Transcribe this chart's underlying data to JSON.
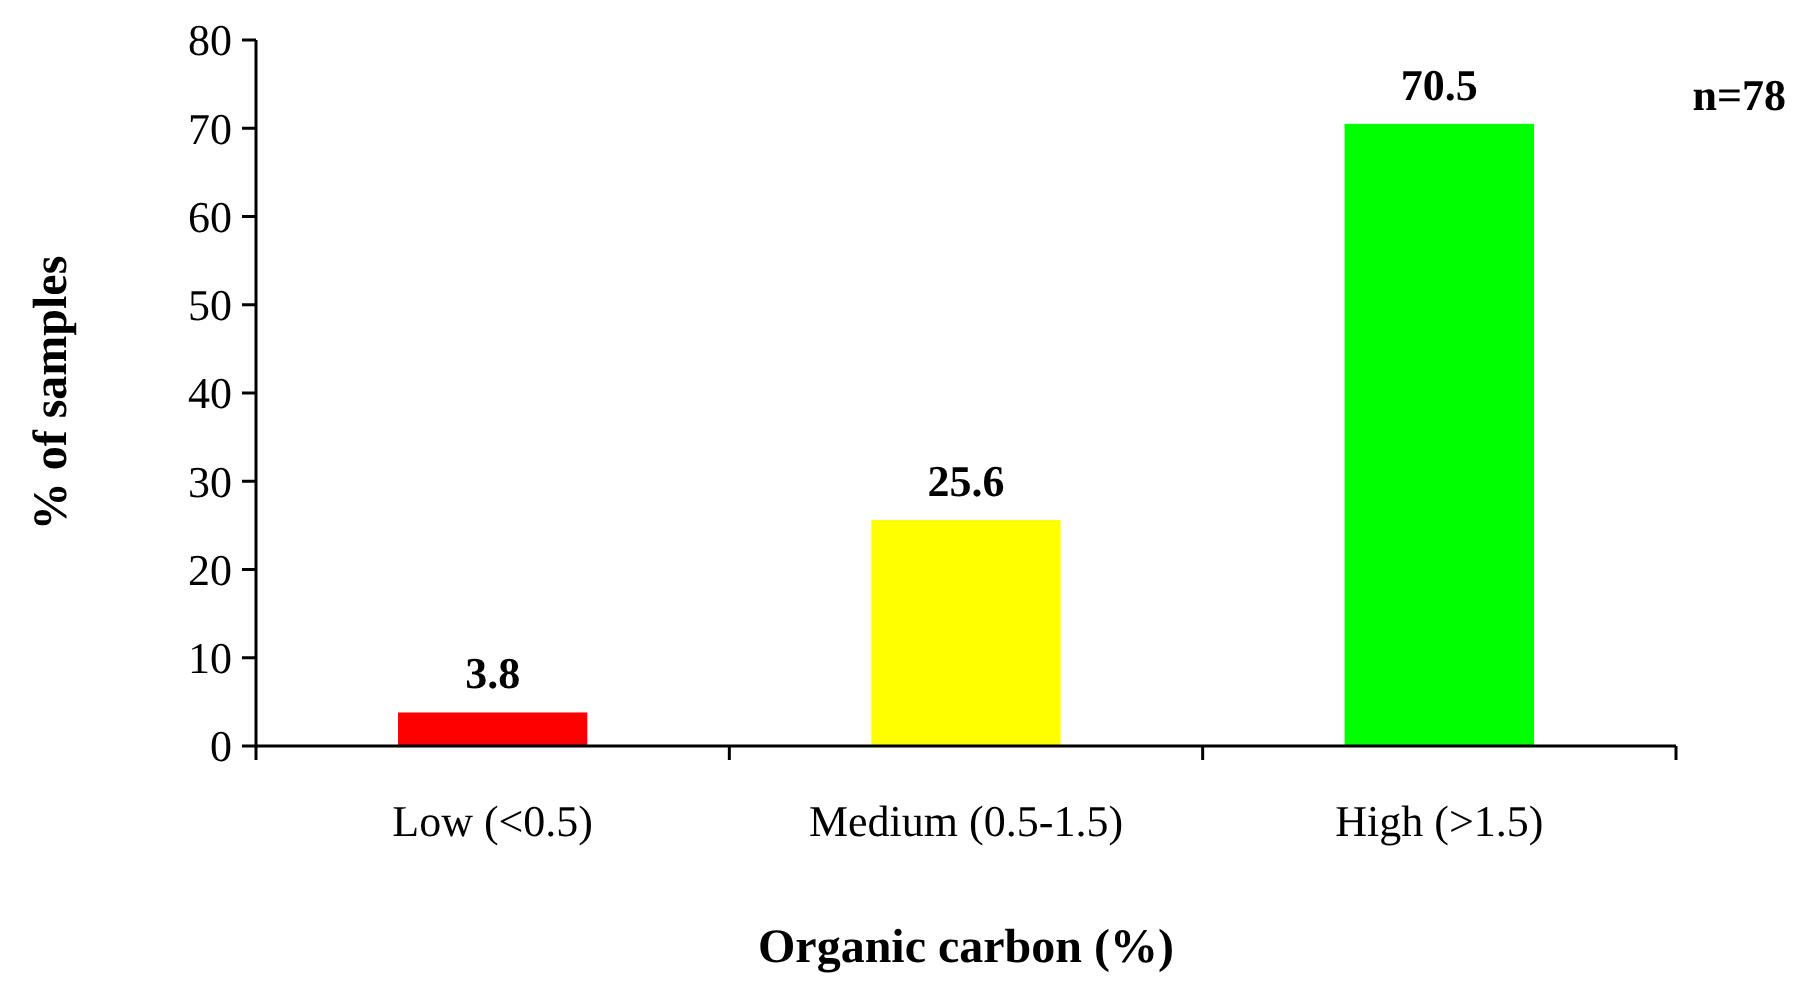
{
  "chart_data": {
    "type": "bar",
    "xlabel": "Organic carbon (%)",
    "ylabel": "% of samples",
    "categories": [
      "Low (<0.5)",
      "Medium (0.5-1.5)",
      "High (>1.5)"
    ],
    "values": [
      3.8,
      25.6,
      70.5
    ],
    "colors": [
      "#ff0000",
      "#ffff00",
      "#00ff00"
    ],
    "ylim": [
      0,
      80
    ],
    "yticks": [
      0,
      10,
      20,
      30,
      40,
      50,
      60,
      70,
      80
    ],
    "data_labels": true,
    "grid": false,
    "annotations": [
      "n=78"
    ]
  }
}
